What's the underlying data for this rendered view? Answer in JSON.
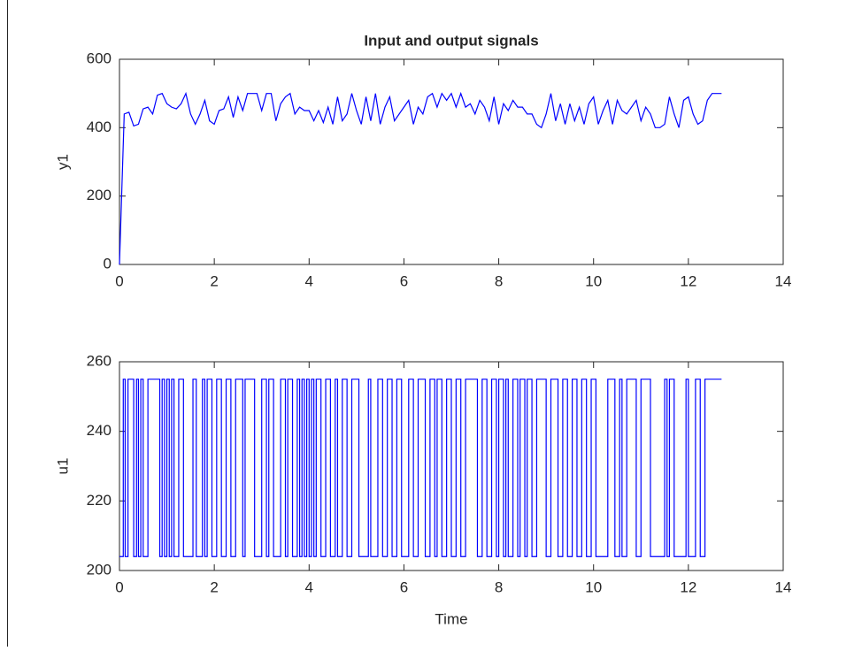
{
  "chart_data": [
    {
      "type": "line",
      "title": "Input and output signals",
      "ylabel": "y1",
      "x": [
        0,
        0.1,
        0.2,
        0.3,
        0.4,
        0.5,
        0.6,
        0.7,
        0.8,
        0.9,
        1.0,
        1.1,
        1.2,
        1.3,
        1.4,
        1.5,
        1.6,
        1.7,
        1.8,
        1.9,
        2.0,
        2.1,
        2.2,
        2.3,
        2.4,
        2.5,
        2.6,
        2.7,
        2.8,
        2.9,
        3.0,
        3.1,
        3.2,
        3.3,
        3.4,
        3.5,
        3.6,
        3.7,
        3.8,
        3.9,
        4.0,
        4.1,
        4.2,
        4.3,
        4.4,
        4.5,
        4.6,
        4.7,
        4.8,
        4.9,
        5.0,
        5.1,
        5.2,
        5.3,
        5.4,
        5.5,
        5.6,
        5.7,
        5.8,
        5.9,
        6.0,
        6.1,
        6.2,
        6.3,
        6.4,
        6.5,
        6.6,
        6.7,
        6.8,
        6.9,
        7.0,
        7.1,
        7.2,
        7.3,
        7.4,
        7.5,
        7.6,
        7.7,
        7.8,
        7.9,
        8.0,
        8.1,
        8.2,
        8.3,
        8.4,
        8.5,
        8.6,
        8.7,
        8.8,
        8.9,
        9.0,
        9.1,
        9.2,
        9.3,
        9.4,
        9.5,
        9.6,
        9.7,
        9.8,
        9.9,
        10.0,
        10.1,
        10.2,
        10.3,
        10.4,
        10.5,
        10.6,
        10.7,
        10.8,
        10.9,
        11.0,
        11.1,
        11.2,
        11.3,
        11.4,
        11.5,
        11.6,
        11.7,
        11.8,
        11.9,
        12.0,
        12.1,
        12.2,
        12.3,
        12.4,
        12.5,
        12.6,
        12.7
      ],
      "series": [
        {
          "name": "y1",
          "color": "#0000ff",
          "values": [
            0,
            440,
            445,
            405,
            410,
            455,
            460,
            440,
            495,
            500,
            470,
            460,
            455,
            470,
            500,
            440,
            410,
            440,
            480,
            420,
            410,
            450,
            455,
            490,
            430,
            490,
            450,
            500,
            500,
            500,
            450,
            500,
            500,
            420,
            470,
            490,
            500,
            440,
            460,
            450,
            450,
            420,
            450,
            415,
            460,
            410,
            490,
            420,
            440,
            500,
            450,
            410,
            490,
            420,
            500,
            410,
            460,
            490,
            420,
            440,
            460,
            480,
            410,
            460,
            440,
            490,
            500,
            460,
            500,
            480,
            500,
            460,
            500,
            460,
            470,
            440,
            480,
            460,
            420,
            490,
            410,
            470,
            450,
            480,
            460,
            460,
            440,
            440,
            410,
            400,
            440,
            500,
            420,
            470,
            410,
            470,
            420,
            460,
            410,
            470,
            490,
            410,
            450,
            480,
            410,
            480,
            450,
            440,
            460,
            480,
            420,
            460,
            440,
            400,
            400,
            410,
            490,
            440,
            400,
            480,
            490,
            440,
            410,
            420,
            480,
            500,
            500,
            500
          ]
        }
      ],
      "xlim": [
        0,
        14
      ],
      "xticks": [
        0,
        2,
        4,
        6,
        8,
        10,
        12,
        14
      ],
      "ylim": [
        0,
        600
      ],
      "yticks": [
        0,
        200,
        400,
        600
      ]
    },
    {
      "type": "step",
      "ylabel": "u1",
      "xlabel": "Time",
      "x": [
        0,
        0.08,
        0.12,
        0.18,
        0.3,
        0.36,
        0.4,
        0.45,
        0.5,
        0.6,
        0.85,
        0.9,
        0.95,
        1.0,
        1.05,
        1.1,
        1.15,
        1.25,
        1.35,
        1.55,
        1.62,
        1.75,
        1.8,
        1.85,
        1.95,
        2.05,
        2.15,
        2.25,
        2.35,
        2.45,
        2.6,
        2.65,
        2.85,
        3.0,
        3.1,
        3.15,
        3.25,
        3.4,
        3.5,
        3.55,
        3.65,
        3.75,
        3.8,
        3.85,
        3.9,
        3.95,
        4.0,
        4.05,
        4.1,
        4.15,
        4.25,
        4.35,
        4.45,
        4.55,
        4.6,
        4.7,
        4.8,
        4.9,
        5.05,
        5.25,
        5.3,
        5.45,
        5.55,
        5.65,
        5.75,
        5.85,
        5.95,
        6.1,
        6.2,
        6.3,
        6.45,
        6.55,
        6.65,
        6.7,
        6.8,
        6.9,
        7.0,
        7.1,
        7.2,
        7.3,
        7.55,
        7.65,
        7.75,
        7.85,
        7.95,
        8.0,
        8.1,
        8.15,
        8.2,
        8.3,
        8.4,
        8.45,
        8.55,
        8.6,
        8.7,
        8.8,
        9.0,
        9.1,
        9.25,
        9.35,
        9.45,
        9.55,
        9.65,
        9.75,
        9.85,
        9.95,
        10.05,
        10.3,
        10.45,
        10.55,
        10.6,
        10.7,
        10.9,
        11.0,
        11.2,
        11.5,
        11.55,
        11.6,
        11.7,
        11.95,
        12.0,
        12.15,
        12.25,
        12.35,
        12.7
      ],
      "series": [
        {
          "name": "u1",
          "color": "#0000ff",
          "values": [
            204,
            255,
            204,
            255,
            204,
            255,
            204,
            255,
            204,
            255,
            204,
            255,
            204,
            255,
            204,
            255,
            204,
            255,
            204,
            255,
            204,
            255,
            204,
            255,
            204,
            255,
            204,
            255,
            204,
            255,
            204,
            255,
            204,
            255,
            204,
            255,
            204,
            255,
            204,
            255,
            204,
            255,
            204,
            255,
            204,
            255,
            204,
            255,
            204,
            255,
            204,
            255,
            204,
            255,
            204,
            255,
            204,
            255,
            204,
            255,
            204,
            255,
            204,
            255,
            204,
            255,
            204,
            255,
            204,
            255,
            204,
            255,
            204,
            255,
            204,
            255,
            204,
            255,
            204,
            255,
            204,
            255,
            204,
            255,
            204,
            255,
            204,
            255,
            204,
            255,
            204,
            255,
            204,
            255,
            204,
            255,
            204,
            255,
            204,
            255,
            204,
            255,
            204,
            255,
            204,
            255,
            204,
            255,
            204,
            255,
            204,
            255,
            204,
            255,
            204,
            255,
            204,
            255,
            204,
            255,
            204,
            255,
            204,
            255,
            255
          ]
        }
      ],
      "xlim": [
        0,
        14
      ],
      "xticks": [
        0,
        2,
        4,
        6,
        8,
        10,
        12,
        14
      ],
      "ylim": [
        200,
        260
      ],
      "yticks": [
        200,
        220,
        240,
        260
      ]
    }
  ]
}
